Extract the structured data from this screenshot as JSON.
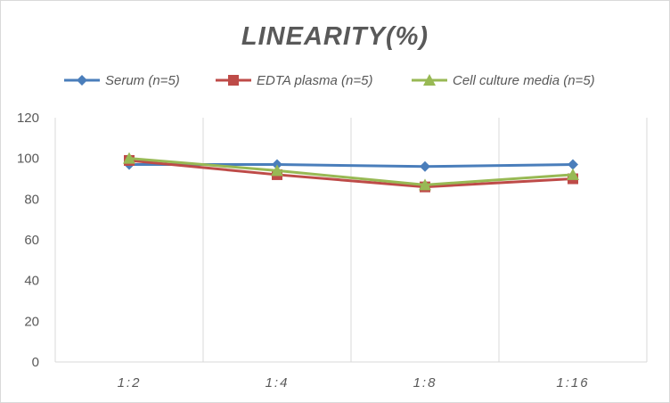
{
  "chart_data": {
    "type": "line",
    "title": "LINEARITY(%)",
    "xlabel": "",
    "ylabel": "",
    "categories": [
      "1:2",
      "1:4",
      "1:8",
      "1:16"
    ],
    "ylim": [
      0,
      120
    ],
    "yticks": [
      0,
      20,
      40,
      60,
      80,
      100,
      120
    ],
    "grid": "vertical",
    "legend_position": "top",
    "series": [
      {
        "name": "Serum (n=5)",
        "values": [
          97,
          97,
          96,
          97
        ],
        "color": "#4a7ebb",
        "marker": "diamond"
      },
      {
        "name": "EDTA plasma (n=5)",
        "values": [
          99,
          92,
          86,
          90
        ],
        "color": "#be4b48",
        "marker": "square"
      },
      {
        "name": "Cell culture media (n=5)",
        "values": [
          100,
          94,
          87,
          92
        ],
        "color": "#98b954",
        "marker": "triangle"
      }
    ]
  }
}
